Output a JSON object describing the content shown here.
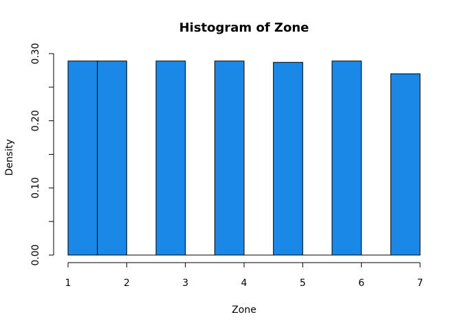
{
  "chart_data": {
    "type": "bar",
    "title": "Histogram of Zone",
    "xlabel": "Zone",
    "ylabel": "Density",
    "bar_color": "#1a88e6",
    "bins": [
      {
        "start": 1.0,
        "end": 1.5,
        "density": 0.289
      },
      {
        "start": 1.5,
        "end": 2.0,
        "density": 0.289
      },
      {
        "start": 2.0,
        "end": 2.5,
        "density": 0.0
      },
      {
        "start": 2.5,
        "end": 3.0,
        "density": 0.289
      },
      {
        "start": 3.0,
        "end": 3.5,
        "density": 0.0
      },
      {
        "start": 3.5,
        "end": 4.0,
        "density": 0.289
      },
      {
        "start": 4.0,
        "end": 4.5,
        "density": 0.0
      },
      {
        "start": 4.5,
        "end": 5.0,
        "density": 0.287
      },
      {
        "start": 5.0,
        "end": 5.5,
        "density": 0.0
      },
      {
        "start": 5.5,
        "end": 6.0,
        "density": 0.289
      },
      {
        "start": 6.0,
        "end": 6.5,
        "density": 0.0
      },
      {
        "start": 6.5,
        "end": 7.0,
        "density": 0.27
      }
    ],
    "xlim": [
      1,
      7
    ],
    "ylim": [
      0,
      0.3
    ],
    "x_ticks": [
      {
        "value": 1,
        "label": "1"
      },
      {
        "value": 2,
        "label": "2"
      },
      {
        "value": 3,
        "label": "3"
      },
      {
        "value": 4,
        "label": "4"
      },
      {
        "value": 5,
        "label": "5"
      },
      {
        "value": 6,
        "label": "6"
      },
      {
        "value": 7,
        "label": "7"
      }
    ],
    "y_ticks": [
      {
        "value": 0.0,
        "label": "0.00"
      },
      {
        "value": 0.05,
        "label": ""
      },
      {
        "value": 0.1,
        "label": "0.10"
      },
      {
        "value": 0.15,
        "label": ""
      },
      {
        "value": 0.2,
        "label": "0.20"
      },
      {
        "value": 0.25,
        "label": ""
      },
      {
        "value": 0.3,
        "label": "0.30"
      }
    ],
    "grid": false
  }
}
